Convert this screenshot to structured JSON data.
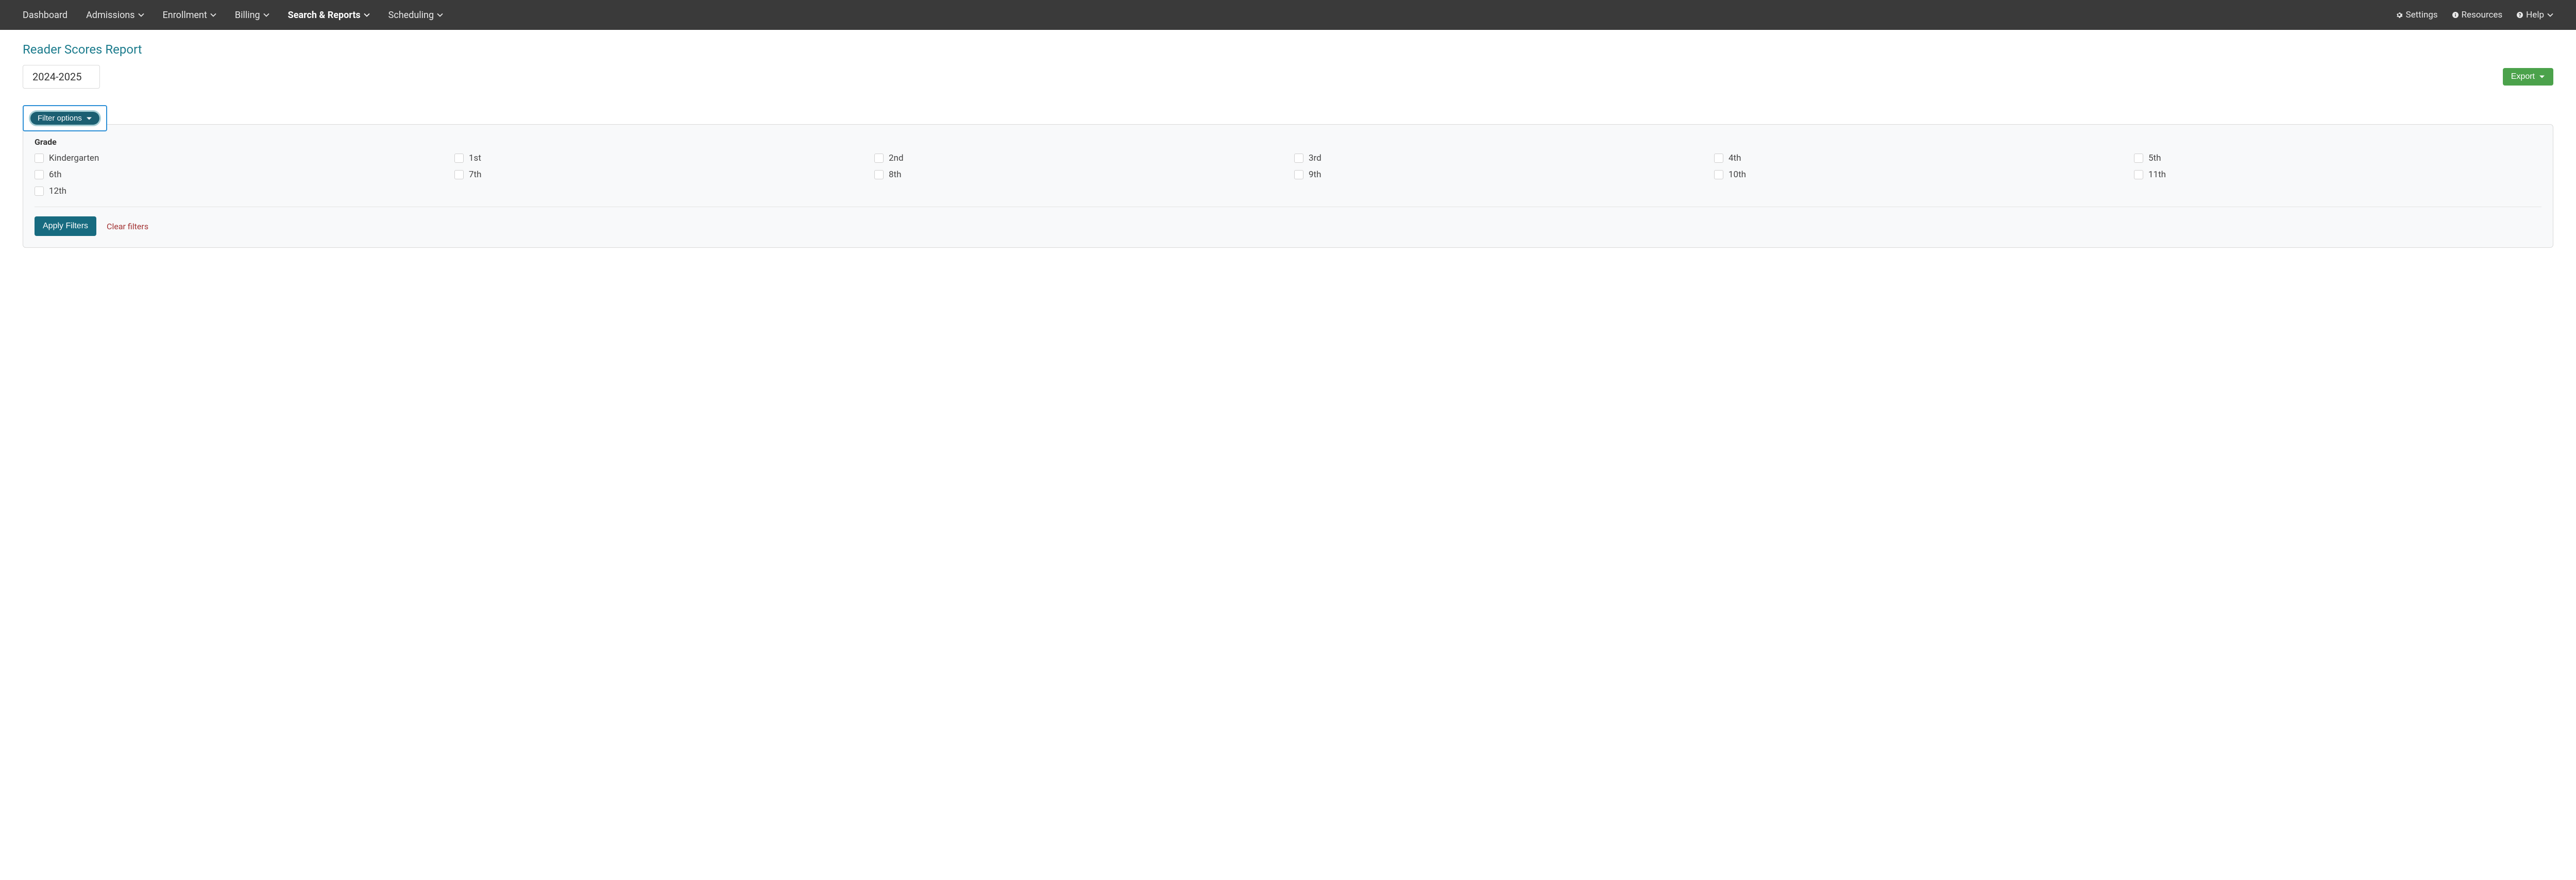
{
  "colors": {
    "navbar_bg": "#3a3a3a",
    "page_title": "#1b7b8c",
    "export_bg": "#4ba24b",
    "filter_pill_bg": "#1b5f72",
    "filter_pill_halo": "#a7cfd6",
    "highlight_border": "#2d8fd6",
    "apply_bg": "#176b80",
    "clear_link": "#a33333",
    "panel_bg": "#f8f9fa",
    "panel_border": "#d9d9d9"
  },
  "nav": {
    "left": [
      {
        "label": "Dashboard",
        "has_caret": false,
        "active": false
      },
      {
        "label": "Admissions",
        "has_caret": true,
        "active": false
      },
      {
        "label": "Enrollment",
        "has_caret": true,
        "active": false
      },
      {
        "label": "Billing",
        "has_caret": true,
        "active": false
      },
      {
        "label": "Search & Reports",
        "has_caret": true,
        "active": true
      },
      {
        "label": "Scheduling",
        "has_caret": true,
        "active": false
      }
    ],
    "right": [
      {
        "label": "Settings",
        "icon": "gear",
        "has_caret": false
      },
      {
        "label": "Resources",
        "icon": "info",
        "has_caret": false
      },
      {
        "label": "Help",
        "icon": "question",
        "has_caret": true
      }
    ]
  },
  "page": {
    "title": "Reader Scores Report",
    "year_selected": "2024-2025",
    "export_label": "Export"
  },
  "filters": {
    "toggle_label": "Filter options",
    "section_label": "Grade",
    "grades": [
      "Kindergarten",
      "1st",
      "2nd",
      "3rd",
      "4th",
      "5th",
      "6th",
      "7th",
      "8th",
      "9th",
      "10th",
      "11th",
      "12th"
    ],
    "apply_label": "Apply Filters",
    "clear_label": "Clear filters"
  }
}
